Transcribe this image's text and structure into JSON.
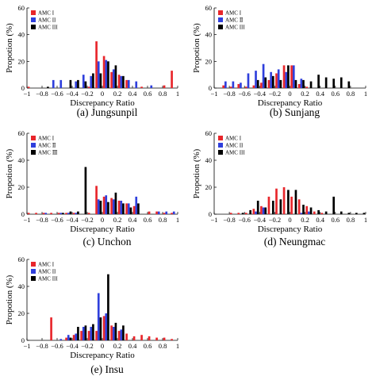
{
  "series_colors": {
    "AMC I": "#e8262b",
    "AMC II": "#2f3fdc",
    "AMC III": "#000000"
  },
  "chart_data": [
    {
      "type": "bar",
      "caption": "(a) Jungsunpil",
      "xlabel": "Discrepancy Ratio",
      "ylabel": "Propotion (%)",
      "xlim": [
        -1,
        1
      ],
      "ylim": [
        0,
        60
      ],
      "xticks": [
        "−1",
        "−0.8",
        "−0.6",
        "−0.4",
        "−0.2",
        "0",
        "0.2",
        "0.4",
        "0.6",
        "0.8",
        "1"
      ],
      "yticks": [
        "0",
        "20",
        "40",
        "60"
      ],
      "legend_position": "top-left",
      "x": [
        -0.95,
        -0.85,
        -0.75,
        -0.65,
        -0.55,
        -0.45,
        -0.35,
        -0.25,
        -0.15,
        -0.05,
        0.05,
        0.15,
        0.25,
        0.35,
        0.45,
        0.55,
        0.65,
        0.75,
        0.85,
        0.95
      ],
      "series": [
        {
          "name": "AMC I",
          "values": [
            1,
            0,
            0,
            0,
            0,
            0,
            0,
            0,
            1,
            35,
            24,
            12,
            10,
            6,
            0,
            1,
            0,
            0,
            2,
            13
          ]
        },
        {
          "name": "AMC II",
          "values": [
            0,
            0,
            0,
            6,
            6,
            0,
            5,
            10,
            9,
            20,
            21,
            14,
            9,
            6,
            5,
            0,
            2,
            0,
            0,
            0
          ]
        },
        {
          "name": "AMC III",
          "values": [
            0,
            0,
            1,
            0,
            0,
            6,
            6,
            5,
            11,
            11,
            20,
            17,
            9,
            0,
            0,
            0,
            0,
            0,
            0,
            0
          ]
        }
      ]
    },
    {
      "type": "bar",
      "caption": "(b) Sunjang",
      "xlabel": "Discrepancy Ratio",
      "ylabel": "Propotion (%)",
      "xlim": [
        -1,
        1
      ],
      "ylim": [
        0,
        60
      ],
      "xticks": [
        "−1",
        "−0.8",
        "−0.6",
        "−0.4",
        "−0.2",
        "0",
        "0.2",
        "0.4",
        "0.6",
        "0.8",
        "1"
      ],
      "yticks": [
        "0",
        "20",
        "40",
        "60"
      ],
      "legend_position": "top-left",
      "legend_labels": [
        "AMC I",
        "AMC Ⅱ",
        "AMC III"
      ],
      "x": [
        -0.95,
        -0.85,
        -0.75,
        -0.65,
        -0.55,
        -0.45,
        -0.35,
        -0.25,
        -0.15,
        -0.05,
        0.05,
        0.15,
        0.25,
        0.35,
        0.45,
        0.55,
        0.65,
        0.75,
        0.85,
        0.95
      ],
      "series": [
        {
          "name": "AMC I",
          "values": [
            0,
            2,
            1,
            3,
            1,
            2,
            4,
            6,
            11,
            17,
            17,
            3,
            1,
            0,
            0,
            0,
            0,
            0,
            0,
            0
          ]
        },
        {
          "name": "AMC II",
          "values": [
            0,
            5,
            5,
            4,
            11,
            13,
            18,
            12,
            14,
            12,
            17,
            7,
            0,
            0,
            0,
            0,
            0,
            0,
            0,
            0
          ]
        },
        {
          "name": "AMC III",
          "values": [
            0,
            0,
            0,
            0,
            0,
            6,
            8,
            9,
            6,
            17,
            6,
            6,
            5,
            10,
            8,
            7,
            8,
            5,
            0,
            0
          ]
        }
      ]
    },
    {
      "type": "bar",
      "caption": "(c) Unchon",
      "xlabel": "Discrepancy Ratio",
      "ylabel": "Propotion (%)",
      "xlim": [
        -1,
        1
      ],
      "ylim": [
        0,
        60
      ],
      "xticks": [
        "−1",
        "−0.8",
        "−0.6",
        "−0.4",
        "−0.2",
        "0",
        "0.2",
        "0.4",
        "0.6",
        "0.8",
        "1"
      ],
      "yticks": [
        "0",
        "20",
        "40",
        "60"
      ],
      "legend_position": "top-left",
      "legend_labels": [
        "AMC I",
        "AMC Ⅱ",
        "AMC Ⅲ"
      ],
      "x": [
        -0.95,
        -0.85,
        -0.75,
        -0.65,
        -0.55,
        -0.45,
        -0.35,
        -0.25,
        -0.15,
        -0.05,
        0.05,
        0.15,
        0.25,
        0.35,
        0.45,
        0.55,
        0.65,
        0.75,
        0.85,
        0.95
      ],
      "series": [
        {
          "name": "AMC I",
          "values": [
            1,
            1,
            1,
            1,
            1,
            1,
            1,
            0,
            1,
            21,
            13,
            12,
            10,
            8,
            6,
            0,
            2,
            2,
            1,
            1
          ]
        },
        {
          "name": "AMC II",
          "values": [
            0,
            0,
            1,
            0,
            1,
            1,
            1,
            0,
            0,
            11,
            14,
            11,
            10,
            8,
            13,
            0,
            0,
            2,
            2,
            2
          ]
        },
        {
          "name": "AMC III",
          "values": [
            0,
            0,
            0,
            0,
            1,
            2,
            2,
            35,
            0,
            10,
            9,
            16,
            8,
            5,
            8,
            0,
            0,
            0,
            0,
            0
          ]
        }
      ]
    },
    {
      "type": "bar",
      "caption": "(d) Neungmac",
      "xlabel": "Discrepancy Ratio",
      "ylabel": "Propotion (%)",
      "xlim": [
        -1,
        1
      ],
      "ylim": [
        0,
        60
      ],
      "xticks": [
        "−1",
        "−0.8",
        "−0.6",
        "−0.4",
        "−0.2",
        "0",
        "0.2",
        "0.4",
        "0.6",
        "0.8",
        "1"
      ],
      "yticks": [
        "0",
        "20",
        "40",
        "60"
      ],
      "legend_position": "top-left",
      "x": [
        -0.95,
        -0.85,
        -0.75,
        -0.65,
        -0.55,
        -0.45,
        -0.35,
        -0.25,
        -0.15,
        -0.05,
        0.05,
        0.15,
        0.25,
        0.35,
        0.45,
        0.55,
        0.65,
        0.75,
        0.85,
        0.95
      ],
      "series": [
        {
          "name": "AMC I",
          "values": [
            0,
            0,
            1,
            1,
            1,
            4,
            6,
            13,
            19,
            20,
            13,
            11,
            6,
            2,
            1,
            0,
            0,
            0,
            0,
            0
          ]
        },
        {
          "name": "AMC II",
          "values": [
            0,
            0,
            0,
            0,
            0,
            2,
            5,
            0,
            0,
            0,
            0,
            1,
            2,
            0,
            0,
            0,
            0,
            0,
            0,
            0
          ]
        },
        {
          "name": "AMC III",
          "values": [
            0,
            0,
            0,
            1,
            3,
            10,
            5,
            10,
            11,
            18,
            18,
            7,
            5,
            3,
            2,
            13,
            2,
            1,
            1,
            1
          ]
        }
      ]
    },
    {
      "type": "bar",
      "caption": "(e) Insu",
      "xlabel": "Discrepancy Ratio",
      "ylabel": "Propotion (%)",
      "xlim": [
        -1,
        1
      ],
      "ylim": [
        0,
        60
      ],
      "xticks": [
        "−1",
        "−0.8",
        "−0.6",
        "−0.4",
        "−0.2",
        "0",
        "0.2",
        "0.4",
        "0.6",
        "0.8",
        "1"
      ],
      "yticks": [
        "0",
        "20",
        "40",
        "60"
      ],
      "legend_position": "top-left",
      "x": [
        -0.95,
        -0.85,
        -0.75,
        -0.65,
        -0.55,
        -0.45,
        -0.35,
        -0.25,
        -0.15,
        -0.05,
        0.05,
        0.15,
        0.25,
        0.35,
        0.45,
        0.55,
        0.65,
        0.75,
        0.85,
        0.95
      ],
      "series": [
        {
          "name": "AMC I",
          "values": [
            0,
            0,
            0,
            17,
            0,
            2,
            4,
            7,
            7,
            7,
            18,
            11,
            7,
            5,
            3,
            4,
            3,
            2,
            2,
            1
          ]
        },
        {
          "name": "AMC II",
          "values": [
            0,
            0,
            0,
            0,
            1,
            4,
            5,
            10,
            10,
            35,
            20,
            10,
            8,
            0,
            0,
            0,
            0,
            0,
            0,
            0
          ]
        },
        {
          "name": "AMC III",
          "values": [
            0,
            0,
            0,
            0,
            0,
            2,
            10,
            11,
            12,
            17,
            49,
            13,
            11,
            0,
            0,
            0,
            0,
            0,
            0,
            0
          ]
        }
      ]
    }
  ]
}
